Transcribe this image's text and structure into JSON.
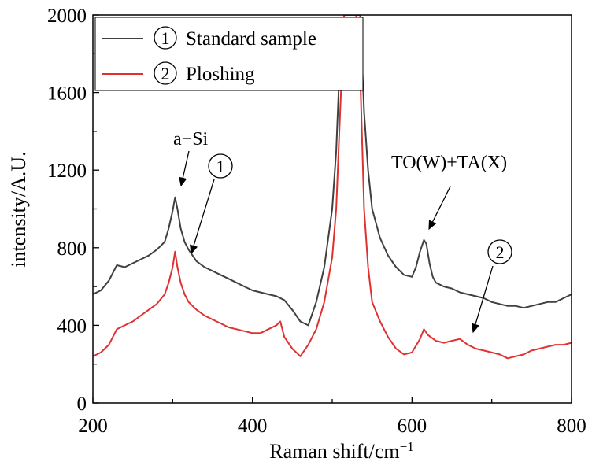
{
  "chart_data": {
    "type": "line",
    "xlabel": "Raman shift/cm",
    "xlabel_superscript": "−1",
    "ylabel": "intensity/A.U.",
    "xlim": [
      200,
      800
    ],
    "ylim": [
      0,
      2000
    ],
    "x_ticks": [
      200,
      400,
      600,
      800
    ],
    "y_ticks": [
      0,
      400,
      800,
      1200,
      1600,
      2000
    ],
    "x_tick_labels": [
      "200",
      "400",
      "600",
      "800"
    ],
    "y_tick_labels": [
      "0",
      "400",
      "800",
      "1200",
      "1600",
      "2000"
    ],
    "grid": false,
    "legend_position": "top-left",
    "series": [
      {
        "name": "Standard sample",
        "marker": "1",
        "color": "#404040",
        "x": [
          200,
          210,
          220,
          230,
          240,
          250,
          260,
          270,
          280,
          290,
          295,
          300,
          303,
          306,
          310,
          315,
          320,
          330,
          340,
          350,
          360,
          370,
          380,
          390,
          400,
          410,
          420,
          430,
          440,
          450,
          460,
          470,
          480,
          490,
          500,
          505,
          510,
          515,
          520,
          525,
          530,
          535,
          540,
          545,
          550,
          560,
          570,
          580,
          590,
          600,
          605,
          610,
          615,
          618,
          622,
          626,
          630,
          640,
          650,
          660,
          670,
          680,
          690,
          700,
          710,
          720,
          730,
          740,
          750,
          760,
          770,
          780,
          790,
          800
        ],
        "y": [
          560,
          580,
          630,
          710,
          700,
          720,
          740,
          760,
          790,
          830,
          900,
          990,
          1060,
          1000,
          900,
          830,
          790,
          730,
          700,
          680,
          660,
          640,
          620,
          600,
          580,
          570,
          560,
          550,
          530,
          480,
          420,
          400,
          520,
          700,
          1000,
          1300,
          1800,
          2000,
          2000,
          2000,
          2000,
          2000,
          1500,
          1200,
          1000,
          850,
          760,
          700,
          660,
          650,
          700,
          780,
          840,
          820,
          720,
          650,
          620,
          600,
          590,
          570,
          560,
          550,
          540,
          520,
          510,
          500,
          500,
          490,
          500,
          510,
          520,
          520,
          540,
          560
        ]
      },
      {
        "name": "Ploshing",
        "marker": "2",
        "color": "#e03131",
        "x": [
          200,
          210,
          220,
          230,
          240,
          250,
          260,
          270,
          280,
          290,
          295,
          300,
          303,
          306,
          310,
          315,
          320,
          330,
          340,
          350,
          360,
          370,
          380,
          390,
          400,
          410,
          420,
          430,
          435,
          440,
          450,
          460,
          470,
          480,
          490,
          500,
          505,
          510,
          515,
          520,
          525,
          530,
          535,
          540,
          545,
          550,
          560,
          570,
          580,
          590,
          600,
          610,
          615,
          620,
          630,
          640,
          650,
          660,
          670,
          680,
          690,
          700,
          710,
          720,
          730,
          740,
          750,
          760,
          770,
          780,
          790,
          800
        ],
        "y": [
          240,
          260,
          300,
          380,
          400,
          420,
          450,
          480,
          510,
          560,
          620,
          700,
          780,
          700,
          620,
          560,
          520,
          480,
          450,
          430,
          410,
          390,
          380,
          370,
          360,
          360,
          380,
          400,
          420,
          340,
          280,
          240,
          300,
          380,
          520,
          750,
          1000,
          1500,
          2000,
          2000,
          2000,
          2000,
          1700,
          1000,
          700,
          520,
          420,
          340,
          280,
          250,
          260,
          330,
          380,
          350,
          320,
          310,
          320,
          330,
          300,
          280,
          270,
          260,
          250,
          230,
          240,
          250,
          270,
          280,
          290,
          300,
          300,
          310
        ]
      }
    ],
    "annotations": [
      {
        "text": "a−Si",
        "target": [
          303,
          1060
        ]
      },
      {
        "text": "1",
        "circled": true,
        "target": [
          320,
          760
        ]
      },
      {
        "text": "TO(W)+TA(X)",
        "target": [
          620,
          830
        ]
      },
      {
        "text": "2",
        "circled": true,
        "target": [
          680,
          340
        ]
      }
    ]
  }
}
